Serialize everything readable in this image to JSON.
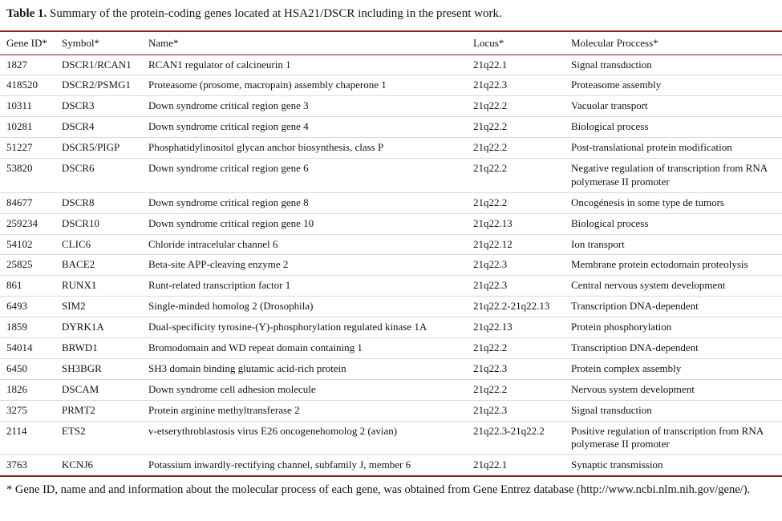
{
  "table": {
    "accent_color": "#8f1d1d",
    "caption_label": "Table 1.",
    "caption_text": " Summary of the protein-coding genes located at HSA21/DSCR including in the present work.",
    "columns": [
      "Gene ID*",
      "Symbol*",
      "Name*",
      "Locus*",
      "Molecular Proccess*"
    ],
    "rows": [
      {
        "gene_id": "1827",
        "symbol": "DSCR1/RCAN1",
        "name": "RCAN1 regulator of calcineurin 1",
        "locus": "21q22.1",
        "process": "Signal transduction"
      },
      {
        "gene_id": "418520",
        "symbol": "DSCR2/PSMG1",
        "name": "Proteasome (prosome, macropain) assembly chaperone 1",
        "locus": "21q22.3",
        "process": "Proteasome assembly"
      },
      {
        "gene_id": "10311",
        "symbol": "DSCR3",
        "name": "Down syndrome critical region gene 3",
        "locus": "21q22.2",
        "process": "Vacuolar transport"
      },
      {
        "gene_id": "10281",
        "symbol": "DSCR4",
        "name": "Down syndrome critical region gene 4",
        "locus": "21q22.2",
        "process": "Biological process"
      },
      {
        "gene_id": "51227",
        "symbol": "DSCR5/PIGP",
        "name": "Phosphatidylinositol glycan anchor biosynthesis, class P",
        "locus": "21q22.2",
        "process": "Post-translational protein modification"
      },
      {
        "gene_id": "53820",
        "symbol": "DSCR6",
        "name": "Down syndrome critical region gene 6",
        "locus": "21q22.2",
        "process": "Negative regulation of transcription from RNA polymerase II promoter"
      },
      {
        "gene_id": "84677",
        "symbol": "DSCR8",
        "name": "Down syndrome critical region gene 8",
        "locus": "21q22.2",
        "process": "Oncogénesis in some type de tumors"
      },
      {
        "gene_id": "259234",
        "symbol": "DSCR10",
        "name": "Down syndrome critical region gene 10",
        "locus": "21q22.13",
        "process": "Biological process"
      },
      {
        "gene_id": "54102",
        "symbol": "CLIC6",
        "name": "Chloride intracelular channel 6",
        "locus": "21q22.12",
        "process": "Ion transport"
      },
      {
        "gene_id": "25825",
        "symbol": "BACE2",
        "name": "Beta-site APP-cleaving enzyme 2",
        "locus": "21q22.3",
        "process": "Membrane protein ectodomain proteolysis"
      },
      {
        "gene_id": "861",
        "symbol": "RUNX1",
        "name": "Runt-related transcription factor 1",
        "locus": "21q22.3",
        "process": "Central nervous system development"
      },
      {
        "gene_id": "6493",
        "symbol": "SIM2",
        "name": "Single-minded homolog 2 (Drosophila)",
        "locus": "21q22.2-21q22.13",
        "process": "Transcription DNA-dependent"
      },
      {
        "gene_id": "1859",
        "symbol": "DYRK1A",
        "name": "Dual-specificity tyrosine-(Y)-phosphorylation regulated kinase 1A",
        "locus": "21q22.13",
        "process": "Protein phosphorylation"
      },
      {
        "gene_id": "54014",
        "symbol": "BRWD1",
        "name": "Bromodomain and WD repeat domain containing 1",
        "locus": "21q22.2",
        "process": "Transcription DNA-dependent"
      },
      {
        "gene_id": "6450",
        "symbol": "SH3BGR",
        "name": "SH3 domain binding glutamic acid-rich protein",
        "locus": "21q22.3",
        "process": "Protein complex assembly"
      },
      {
        "gene_id": "1826",
        "symbol": "DSCAM",
        "name": "Down syndrome cell adhesion molecule",
        "locus": "21q22.2",
        "process": "Nervous system development"
      },
      {
        "gene_id": "3275",
        "symbol": "PRMT2",
        "name": "Protein arginine methyltransferase 2",
        "locus": "21q22.3",
        "process": "Signal transduction"
      },
      {
        "gene_id": "2114",
        "symbol": "ETS2",
        "name": "v-etserythroblastosis virus E26 oncogenehomolog 2 (avian)",
        "locus": "21q22.3-21q22.2",
        "process": "Positive regulation of transcription from RNA polymerase II promoter"
      },
      {
        "gene_id": "3763",
        "symbol": "KCNJ6",
        "name": "Potassium inwardly-rectifying channel, subfamily J, member 6",
        "locus": "21q22.1",
        "process": "Synaptic transmission"
      }
    ],
    "footnote": "* Gene ID, name and and information about the molecular process of each gene, was obtained from Gene Entrez database (http://www.ncbi.nlm.nih.gov/gene/)."
  }
}
